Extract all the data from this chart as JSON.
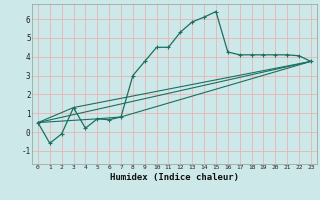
{
  "xlabel": "Humidex (Indice chaleur)",
  "background_color": "#cde8e8",
  "grid_color": "#e8b4b4",
  "line_color": "#1a7060",
  "xlim": [
    -0.5,
    23.5
  ],
  "ylim": [
    -1.7,
    6.8
  ],
  "yticks": [
    -1,
    0,
    1,
    2,
    3,
    4,
    5,
    6
  ],
  "xticks": [
    0,
    1,
    2,
    3,
    4,
    5,
    6,
    7,
    8,
    9,
    10,
    11,
    12,
    13,
    14,
    15,
    16,
    17,
    18,
    19,
    20,
    21,
    22,
    23
  ],
  "main_x": [
    0,
    1,
    2,
    3,
    4,
    5,
    6,
    7,
    8,
    9,
    10,
    11,
    12,
    13,
    14,
    15,
    16,
    17,
    18,
    19,
    20,
    21,
    22,
    23
  ],
  "main_y": [
    0.5,
    -0.6,
    -0.1,
    1.3,
    0.2,
    0.7,
    0.65,
    0.8,
    3.0,
    3.75,
    4.5,
    4.5,
    5.3,
    5.85,
    6.1,
    6.4,
    4.25,
    4.1,
    4.1,
    4.1,
    4.1,
    4.1,
    4.05,
    3.75
  ],
  "line1_x": [
    0,
    23
  ],
  "line1_y": [
    0.5,
    3.75
  ],
  "line2_x": [
    0,
    3,
    23
  ],
  "line2_y": [
    0.5,
    1.3,
    3.75
  ],
  "line3_x": [
    0,
    5,
    7,
    23
  ],
  "line3_y": [
    0.5,
    0.7,
    0.8,
    3.75
  ]
}
